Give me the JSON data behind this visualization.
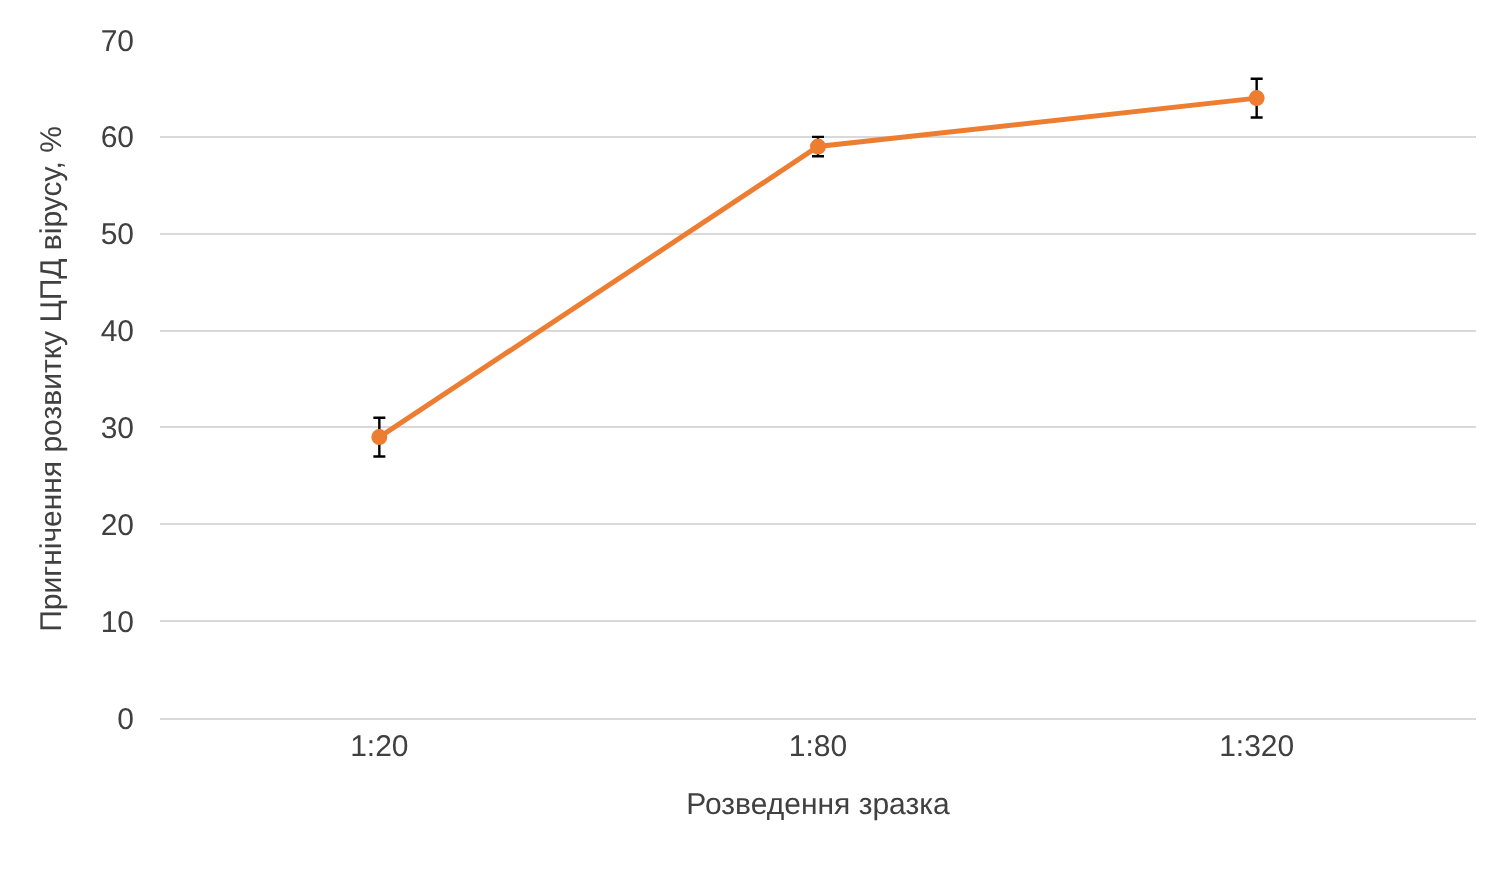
{
  "chart_data": {
    "type": "line",
    "xlabel": "Розведення зразка",
    "ylabel": "Пригнічення розвитку ЦПД вірусу, %",
    "categories": [
      "1:20",
      "1:80",
      "1:320"
    ],
    "series": [
      {
        "color": "#ed7d31",
        "values": [
          29,
          59,
          64
        ],
        "errors": [
          2,
          1,
          2
        ]
      }
    ],
    "ylim": [
      0,
      70
    ],
    "yticks": [
      0,
      10,
      20,
      30,
      40,
      50,
      60,
      70
    ],
    "grid": "y",
    "marker": "circle",
    "line_style": "solid",
    "legend": false
  }
}
